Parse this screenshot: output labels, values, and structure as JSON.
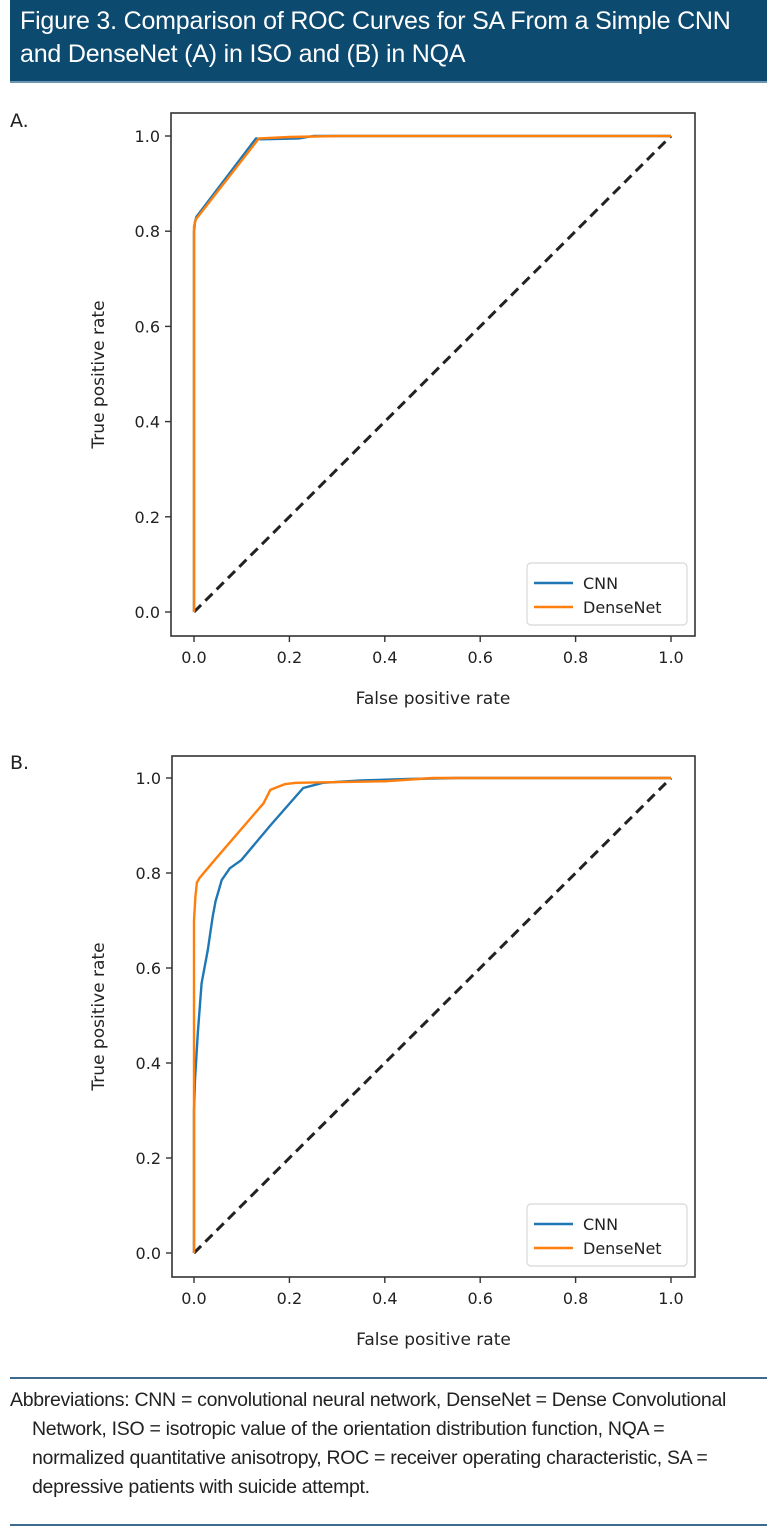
{
  "header": {
    "title": "Figure 3. Comparison of ROC Curves for SA From a Simple CNN and DenseNet (A) in ISO and (B) in NQA",
    "background_color": "#0c4a70"
  },
  "colors": {
    "cnn": "#1f77b4",
    "densenet": "#ff7f0e",
    "diagonal": "#222222"
  },
  "chart_data": [
    {
      "panel_label": "A.",
      "type": "line",
      "xlabel": "False positive rate",
      "ylabel": "True positive rate",
      "xlim": [
        -0.05,
        1.05
      ],
      "ylim": [
        -0.05,
        1.05
      ],
      "xticks": [
        "0.0",
        "0.2",
        "0.4",
        "0.6",
        "0.8",
        "1.0"
      ],
      "yticks": [
        "0.0",
        "0.2",
        "0.4",
        "0.6",
        "0.8",
        "1.0"
      ],
      "grid": false,
      "legend_position": "lower-right",
      "legend": [
        "CNN",
        "DenseNet"
      ],
      "series": [
        {
          "name": "CNN",
          "x": [
            0,
            0,
            0.002,
            0.005,
            0.13,
            0.14,
            0.22,
            0.25,
            1.0
          ],
          "y": [
            0,
            0.8,
            0.82,
            0.83,
            0.995,
            0.993,
            0.995,
            1.0,
            1.0
          ]
        },
        {
          "name": "DenseNet",
          "x": [
            0,
            0,
            0.004,
            0.008,
            0.136,
            0.2,
            0.3,
            1.0
          ],
          "y": [
            0,
            0.81,
            0.825,
            0.83,
            0.995,
            0.998,
            1.0,
            1.0
          ]
        },
        {
          "name": "chance",
          "x": [
            0,
            1
          ],
          "y": [
            0,
            1
          ],
          "dashed": true
        }
      ]
    },
    {
      "panel_label": "B.",
      "type": "line",
      "xlabel": "False positive rate",
      "ylabel": "True positive rate",
      "xlim": [
        -0.05,
        1.05
      ],
      "ylim": [
        -0.05,
        1.05
      ],
      "xticks": [
        "0.0",
        "0.2",
        "0.4",
        "0.6",
        "0.8",
        "1.0"
      ],
      "yticks": [
        "0.0",
        "0.2",
        "0.4",
        "0.6",
        "0.8",
        "1.0"
      ],
      "grid": false,
      "legend_position": "lower-right",
      "legend": [
        "CNN",
        "DenseNet"
      ],
      "series": [
        {
          "name": "CNN",
          "x": [
            0,
            0,
            0.002,
            0.008,
            0.016,
            0.029,
            0.039,
            0.045,
            0.058,
            0.075,
            0.099,
            0.16,
            0.229,
            0.27,
            0.35,
            0.45,
            0.55,
            1.0
          ],
          "y": [
            0,
            0.3,
            0.364,
            0.463,
            0.568,
            0.638,
            0.707,
            0.74,
            0.785,
            0.81,
            0.827,
            0.9,
            0.979,
            0.99,
            0.995,
            0.998,
            1.0,
            1.0
          ]
        },
        {
          "name": "DenseNet",
          "x": [
            0,
            0,
            0.003,
            0.006,
            0.012,
            0.043,
            0.146,
            0.16,
            0.19,
            0.214,
            0.4,
            0.5,
            1.0
          ],
          "y": [
            0,
            0.7,
            0.75,
            0.78,
            0.79,
            0.827,
            0.947,
            0.975,
            0.987,
            0.99,
            0.993,
            1.0,
            1.0
          ]
        },
        {
          "name": "chance",
          "x": [
            0,
            1
          ],
          "y": [
            0,
            1
          ],
          "dashed": true
        }
      ]
    }
  ],
  "footnote": {
    "text": "Abbreviations: CNN = convolutional neural network, DenseNet = Dense Convolutional Network, ISO = isotropic value of the orientation distribution function, NQA = normalized quantitative anisotropy, ROC = receiver operating characteristic, SA = depressive patients with suicide attempt."
  }
}
